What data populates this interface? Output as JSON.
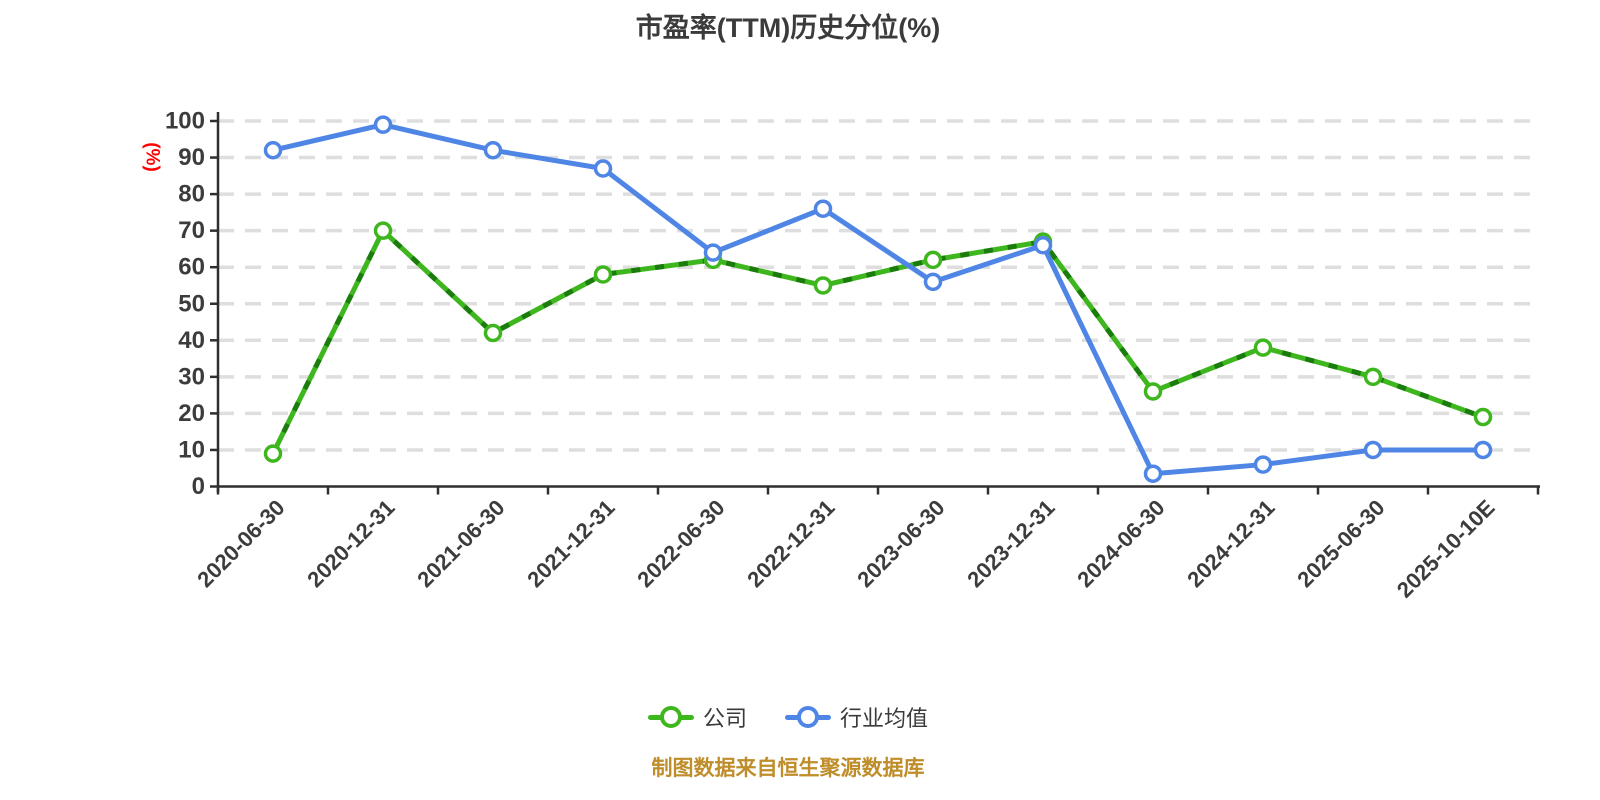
{
  "title": "市盈率(TTM)历史分位(%)",
  "footer": "制图数据来自恒生聚源数据库",
  "colors": {
    "title_text": "#3b3b3b",
    "axis_line": "#2f2f2f",
    "axis_tick_label": "#3c3c3c",
    "gridline": "#dedede",
    "y_axis_name": "#ff0000",
    "company_line": "#3eb71e",
    "company_dash_overlay": "#1b7c0d",
    "industry_line": "#4f86e6",
    "marker_fill": "#ffffff",
    "footer_text": "#bf8d2a"
  },
  "legend": {
    "items": [
      {
        "label": "公司",
        "color": "#3eb71e"
      },
      {
        "label": "行业均值",
        "color": "#4f86e6"
      }
    ]
  },
  "chart_data": {
    "type": "line",
    "title": "市盈率(TTM)历史分位(%)",
    "y_axis_name": "(%)",
    "categories": [
      "2020-06-30",
      "2020-12-31",
      "2021-06-30",
      "2021-12-31",
      "2022-06-30",
      "2022-12-31",
      "2023-06-30",
      "2023-12-31",
      "2024-06-30",
      "2024-12-31",
      "2025-06-30",
      "2025-10-10E"
    ],
    "series": [
      {
        "name": "公司",
        "color": "#3eb71e",
        "dash_overlay_color": "#1b7c0d",
        "values": [
          9,
          70,
          42,
          58,
          62,
          55,
          62,
          67,
          26,
          38,
          30,
          19
        ]
      },
      {
        "name": "行业均值",
        "color": "#4f86e6",
        "dash_overlay_color": null,
        "values": [
          92,
          99,
          92,
          87,
          64,
          76,
          56,
          66,
          3.5,
          6,
          10,
          10
        ]
      }
    ],
    "ylim": [
      0,
      100
    ],
    "y_tick_step": 10,
    "xlabel": "",
    "ylabel": "(%)",
    "grid": "horizontal dashed gridlines",
    "x_label_rotation": -45,
    "legend_position": "bottom",
    "source_note": "制图数据来自恒生聚源数据库"
  }
}
